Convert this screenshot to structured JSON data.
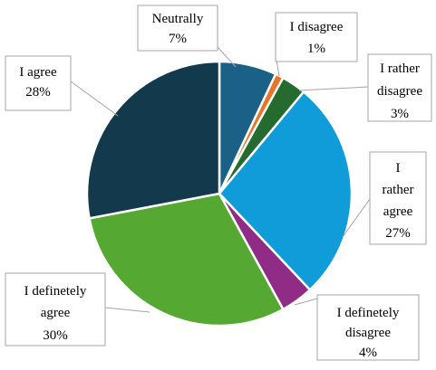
{
  "chart_data": {
    "type": "pie",
    "slices": [
      {
        "label": "Neutrally",
        "value": 7,
        "percent_label": "7%",
        "color": "#1a6087"
      },
      {
        "label": "I disagree",
        "value": 1,
        "percent_label": "1%",
        "color": "#e8742a"
      },
      {
        "label": "I rather disagree",
        "value": 3,
        "percent_label": "3%",
        "color": "#256b30"
      },
      {
        "label": "I rather agree",
        "value": 27,
        "percent_label": "27%",
        "color": "#0f9cd8"
      },
      {
        "label": "I definetely disagree",
        "value": 4,
        "percent_label": "4%",
        "color": "#912c86"
      },
      {
        "label": "I definetely agree",
        "value": 30,
        "percent_label": "30%",
        "color": "#55a832"
      },
      {
        "label": "I agree",
        "value": 28,
        "percent_label": "28%",
        "color": "#123a4c"
      }
    ],
    "start": "12 o'clock",
    "direction": "clockwise",
    "legend": "none"
  }
}
